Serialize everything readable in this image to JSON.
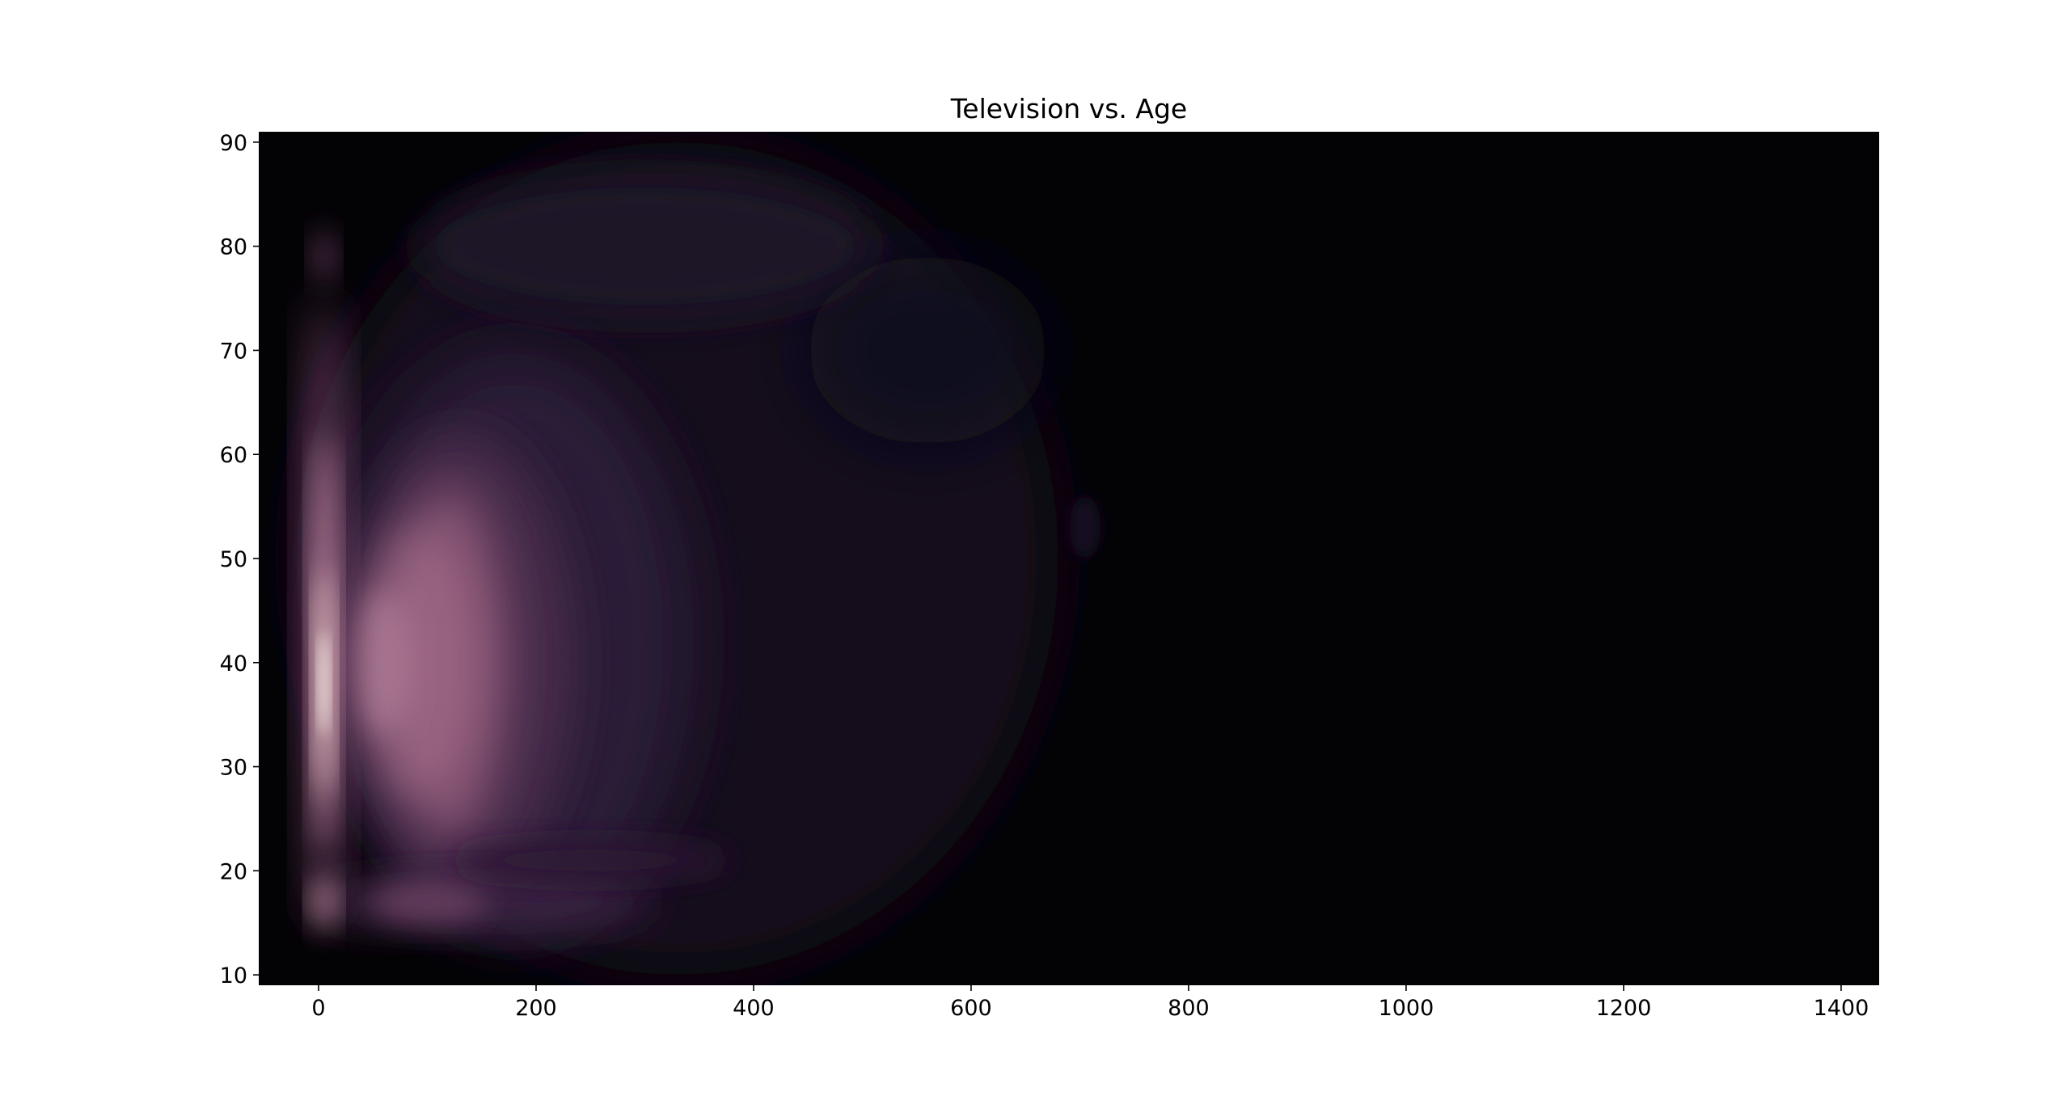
{
  "chart_data": {
    "type": "heatmap",
    "subtype": "2d-kde-density",
    "title": "Television vs. Age",
    "xlabel": "",
    "ylabel": "",
    "xlim": [
      -55,
      1435
    ],
    "ylim": [
      9,
      91
    ],
    "x_ticks": [
      0,
      200,
      400,
      600,
      800,
      1000,
      1200,
      1400
    ],
    "y_ticks": [
      10,
      20,
      30,
      40,
      50,
      60,
      70,
      80,
      90
    ],
    "colormap": "cubehelix-dark-purple",
    "colors": {
      "background": "#030205",
      "low": "#130f1c",
      "mid": "#5a3259",
      "high": "#c78aa6",
      "peak": "#fdf1ea"
    },
    "density_regions": [
      {
        "x_range": [
          0,
          800
        ],
        "y_range": [
          12,
          88
        ],
        "level": "low"
      },
      {
        "x_range": [
          0,
          400
        ],
        "y_range": [
          14,
          80
        ],
        "level": "mid"
      },
      {
        "x_range": [
          60,
          160
        ],
        "y_range": [
          25,
          60
        ],
        "level": "high"
      },
      {
        "x_range": [
          0,
          20
        ],
        "y_range": [
          15,
          70
        ],
        "level": "high"
      }
    ],
    "peak": {
      "x": 5,
      "y": 38
    },
    "secondary_peaks": [
      {
        "x": 5,
        "y": 17
      },
      {
        "x": 120,
        "y": 17
      },
      {
        "x": 60,
        "y": 40
      },
      {
        "x": 5,
        "y": 79
      }
    ]
  }
}
